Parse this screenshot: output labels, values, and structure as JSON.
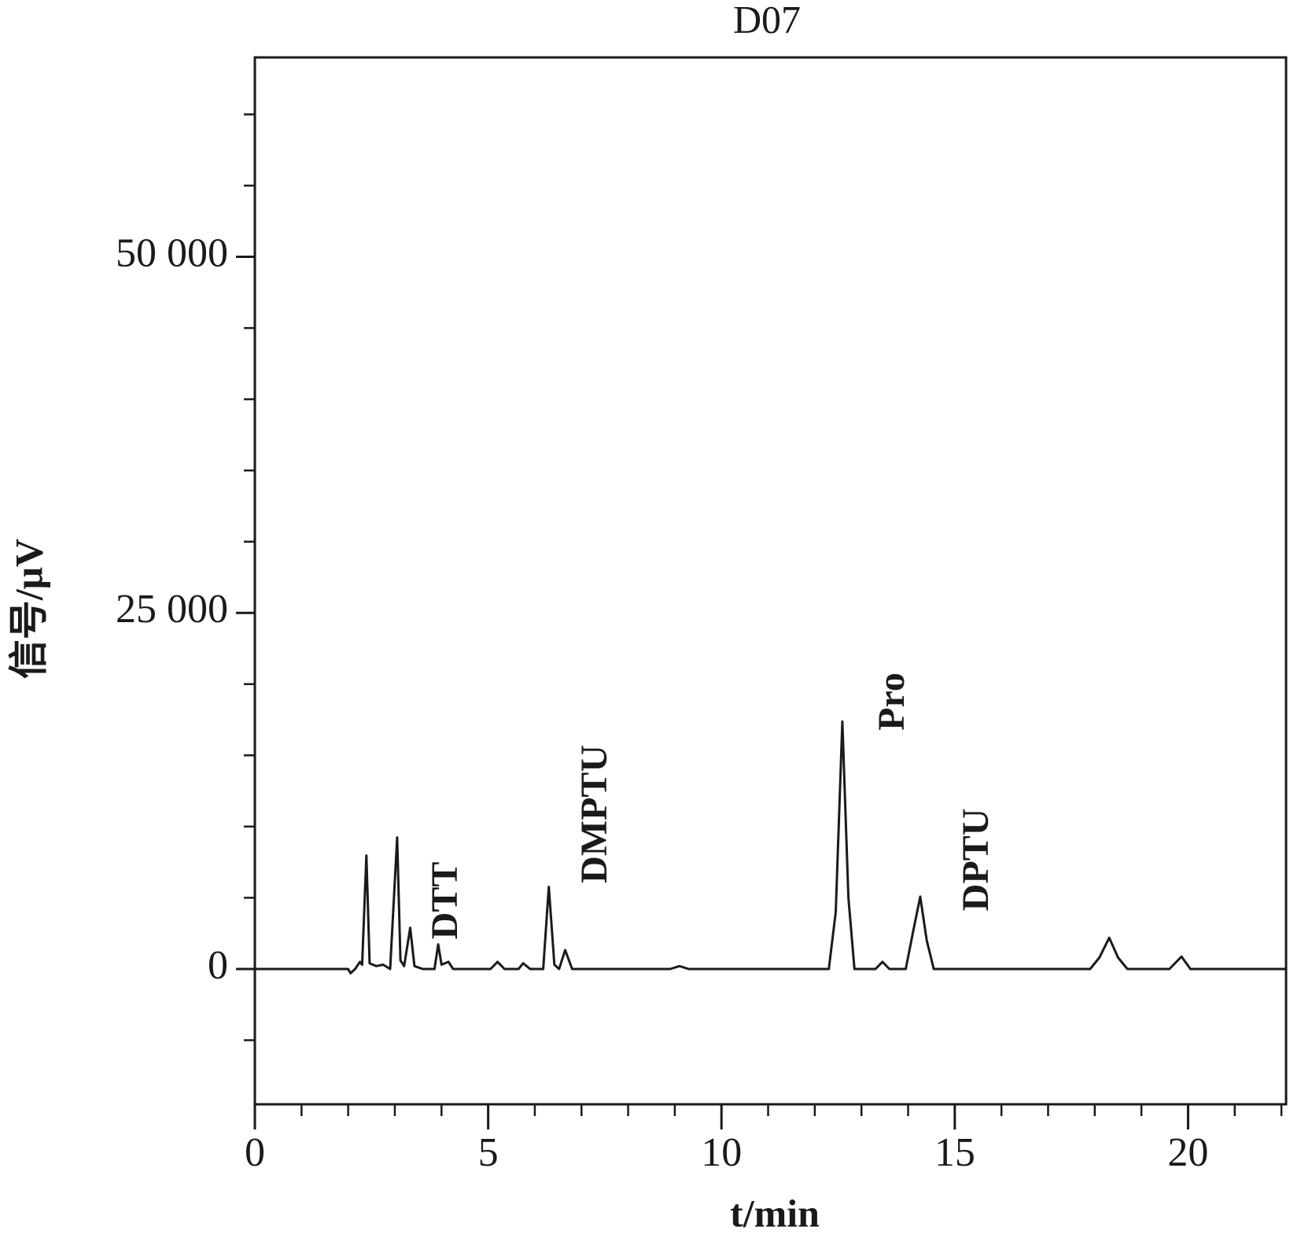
{
  "chart_data": {
    "type": "line",
    "title": "D07",
    "x_label": "t/min",
    "y_label": "信号/μV",
    "xlim": [
      0,
      22.1
    ],
    "ylim": [
      -9500,
      64000
    ],
    "xticks": [
      0,
      5,
      10,
      15,
      20
    ],
    "xticks_minor": [
      1,
      2,
      3,
      4,
      6,
      7,
      8,
      9,
      11,
      12,
      13,
      14,
      16,
      17,
      18,
      19,
      21,
      22
    ],
    "yticks": [
      0,
      {
        "value": 25000,
        "label": "25 000"
      },
      {
        "value": 50000,
        "label": "50 000"
      }
    ],
    "yticks_minor": [
      -5000,
      5000,
      10000,
      15000,
      20000,
      30000,
      35000,
      40000,
      45000,
      55000,
      60000
    ],
    "annotations": [
      "DTT",
      "DMPTU",
      "Pro",
      "DPTU"
    ],
    "series": [
      {
        "color": "#1a1a1a",
        "x": [
          0,
          2.0,
          2.05,
          2.15,
          2.25,
          2.3,
          2.39,
          2.46,
          2.6,
          2.75,
          2.9,
          3.05,
          3.12,
          3.2,
          3.33,
          3.42,
          3.6,
          3.85,
          3.93,
          4.0,
          4.15,
          4.25,
          5.05,
          5.2,
          5.35,
          5.65,
          5.75,
          5.9,
          6.18,
          6.3,
          6.42,
          6.52,
          6.65,
          6.8,
          8.9,
          9.1,
          9.3,
          12.3,
          12.45,
          12.59,
          12.72,
          12.85,
          13.3,
          13.45,
          13.6,
          13.95,
          14.1,
          14.26,
          14.4,
          14.55,
          17.9,
          18.1,
          18.31,
          18.5,
          18.7,
          19.6,
          19.86,
          20.05,
          22.1
        ],
        "values": [
          0,
          0,
          -300,
          0,
          500,
          300,
          7960,
          400,
          200,
          300,
          0,
          9230,
          600,
          200,
          2890,
          200,
          0,
          0,
          1730,
          300,
          500,
          0,
          0,
          500,
          0,
          0,
          400,
          0,
          0,
          5770,
          300,
          0,
          1330,
          0,
          0,
          200,
          0,
          0,
          4000,
          17370,
          5000,
          0,
          0,
          500,
          0,
          0,
          2500,
          5080,
          2000,
          0,
          0,
          800,
          2190,
          800,
          0,
          0,
          870,
          0,
          0
        ]
      }
    ]
  }
}
